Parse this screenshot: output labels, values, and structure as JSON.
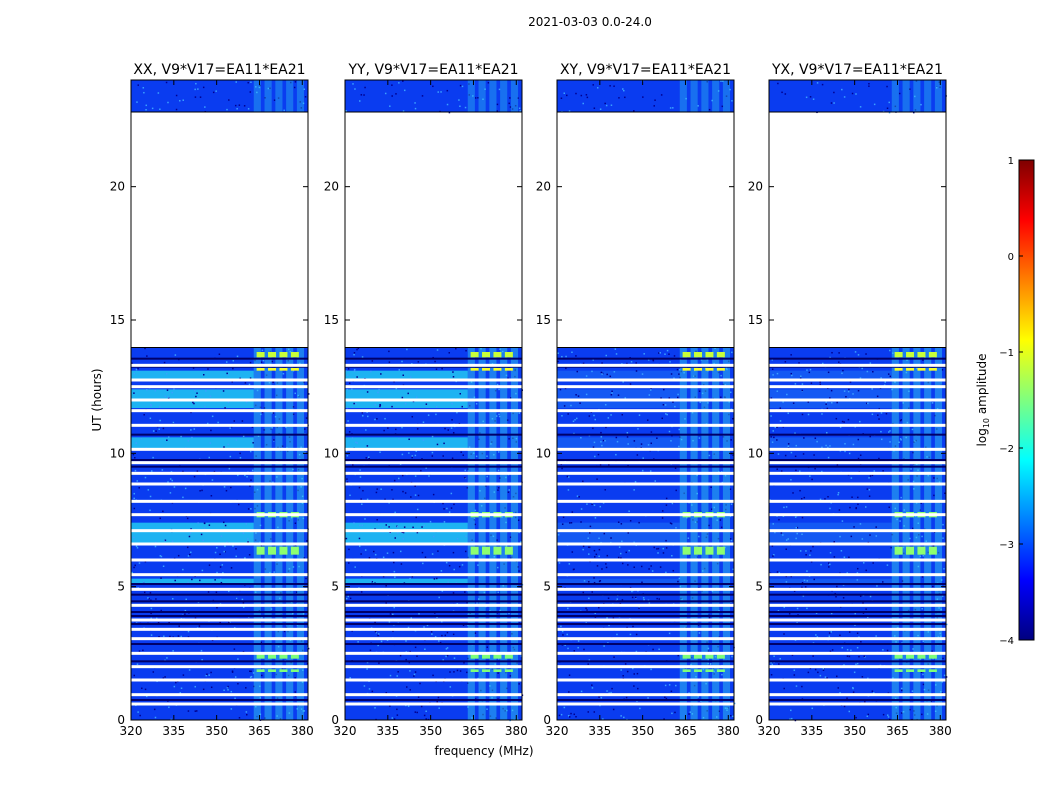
{
  "chart_data": {
    "type": "heatmap",
    "title": "2021-03-03 0.0-24.0",
    "ylabel": "UT (hours)",
    "xlabel": "frequency (MHz)",
    "xlim": [
      320,
      382
    ],
    "ylim": [
      0,
      24
    ],
    "xticks": [
      320,
      335,
      350,
      365,
      380
    ],
    "yticks": [
      0,
      5,
      10,
      15,
      20
    ],
    "panels": [
      {
        "title": "XX, V9*V17=EA11*EA21",
        "polarization": "XX"
      },
      {
        "title": "YY, V9*V17=EA11*EA21",
        "polarization": "YY"
      },
      {
        "title": "XY, V9*V17=EA11*EA21",
        "polarization": "XY"
      },
      {
        "title": "YX, V9*V17=EA11*EA21",
        "polarization": "YX"
      }
    ],
    "colorbar": {
      "label": "log10 amplitude",
      "label_main": "log",
      "label_sub": "10",
      "label_rest": " amplitude",
      "range": [
        -4,
        1
      ],
      "ticks": [
        "1",
        "0",
        "−1",
        "−2",
        "−3",
        "−4"
      ],
      "colormap": "jet",
      "colors": [
        "#00007f",
        "#0000ff",
        "#007fff",
        "#00ffff",
        "#7fff7f",
        "#ffff00",
        "#ff7f00",
        "#ff0000",
        "#7f0000"
      ]
    },
    "data_hours": [
      [
        0,
        13.97
      ],
      [
        22.8,
        24.0
      ]
    ],
    "gap_hours": [
      [
        13.97,
        22.8
      ]
    ],
    "rfi_band_MHz": [
      363,
      380
    ]
  }
}
